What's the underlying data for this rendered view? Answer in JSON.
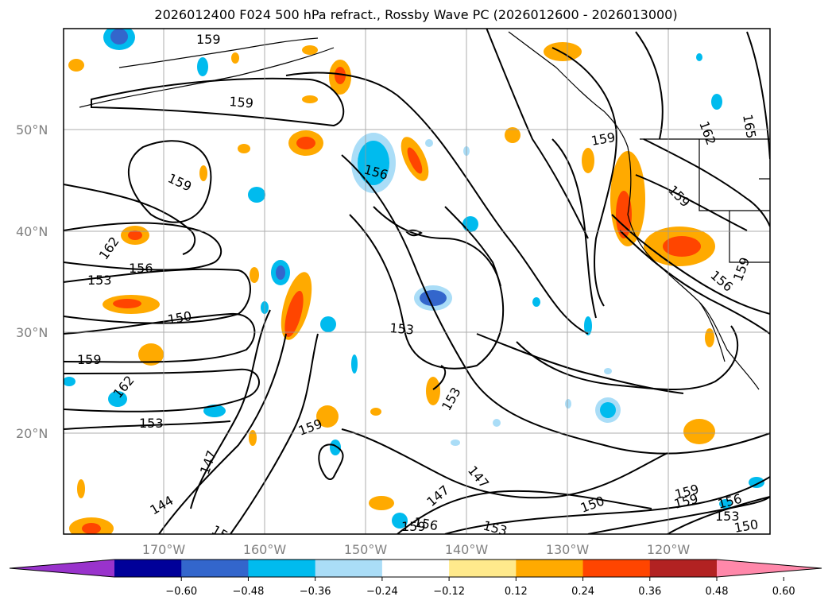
{
  "title": "2026012400 F024 500 hPa refract., Rossby Wave PC (2026012600 - 2026013000)",
  "lat_labels": [
    "50°N",
    "40°N",
    "30°N",
    "20°N"
  ],
  "lon_labels": [
    "170°W",
    "160°W",
    "150°W",
    "140°W",
    "130°W",
    "120°W"
  ],
  "contour_labels": [
    {
      "text": "159"
    },
    {
      "text": "159"
    },
    {
      "text": "159"
    },
    {
      "text": "156"
    },
    {
      "text": "162"
    },
    {
      "text": "156"
    },
    {
      "text": "153"
    },
    {
      "text": "150"
    },
    {
      "text": "159"
    },
    {
      "text": "162"
    },
    {
      "text": "153"
    },
    {
      "text": "147"
    },
    {
      "text": "144"
    },
    {
      "text": "15"
    },
    {
      "text": "153"
    },
    {
      "text": "153"
    },
    {
      "text": "159"
    },
    {
      "text": "147"
    },
    {
      "text": "147"
    },
    {
      "text": "156"
    },
    {
      "text": "159"
    },
    {
      "text": "153"
    },
    {
      "text": "150"
    },
    {
      "text": "159"
    },
    {
      "text": "159"
    },
    {
      "text": "162"
    },
    {
      "text": "165"
    },
    {
      "text": "159"
    },
    {
      "text": "156"
    },
    {
      "text": "159"
    },
    {
      "text": "159"
    },
    {
      "text": "156"
    },
    {
      "text": "153"
    },
    {
      "text": "150"
    }
  ],
  "colorbar": {
    "colors": [
      "#9933cc",
      "#000099",
      "#3366cc",
      "#00bbee",
      "#aaddf7",
      "#ffffff",
      "#ffea8c",
      "#ffaa00",
      "#ff4500",
      "#b22222",
      "#ff88aa"
    ],
    "ticks": [
      "−0.60",
      "−0.48",
      "−0.36",
      "−0.24",
      "−0.12",
      "0.12",
      "0.24",
      "0.36",
      "0.48",
      "0.60"
    ]
  }
}
